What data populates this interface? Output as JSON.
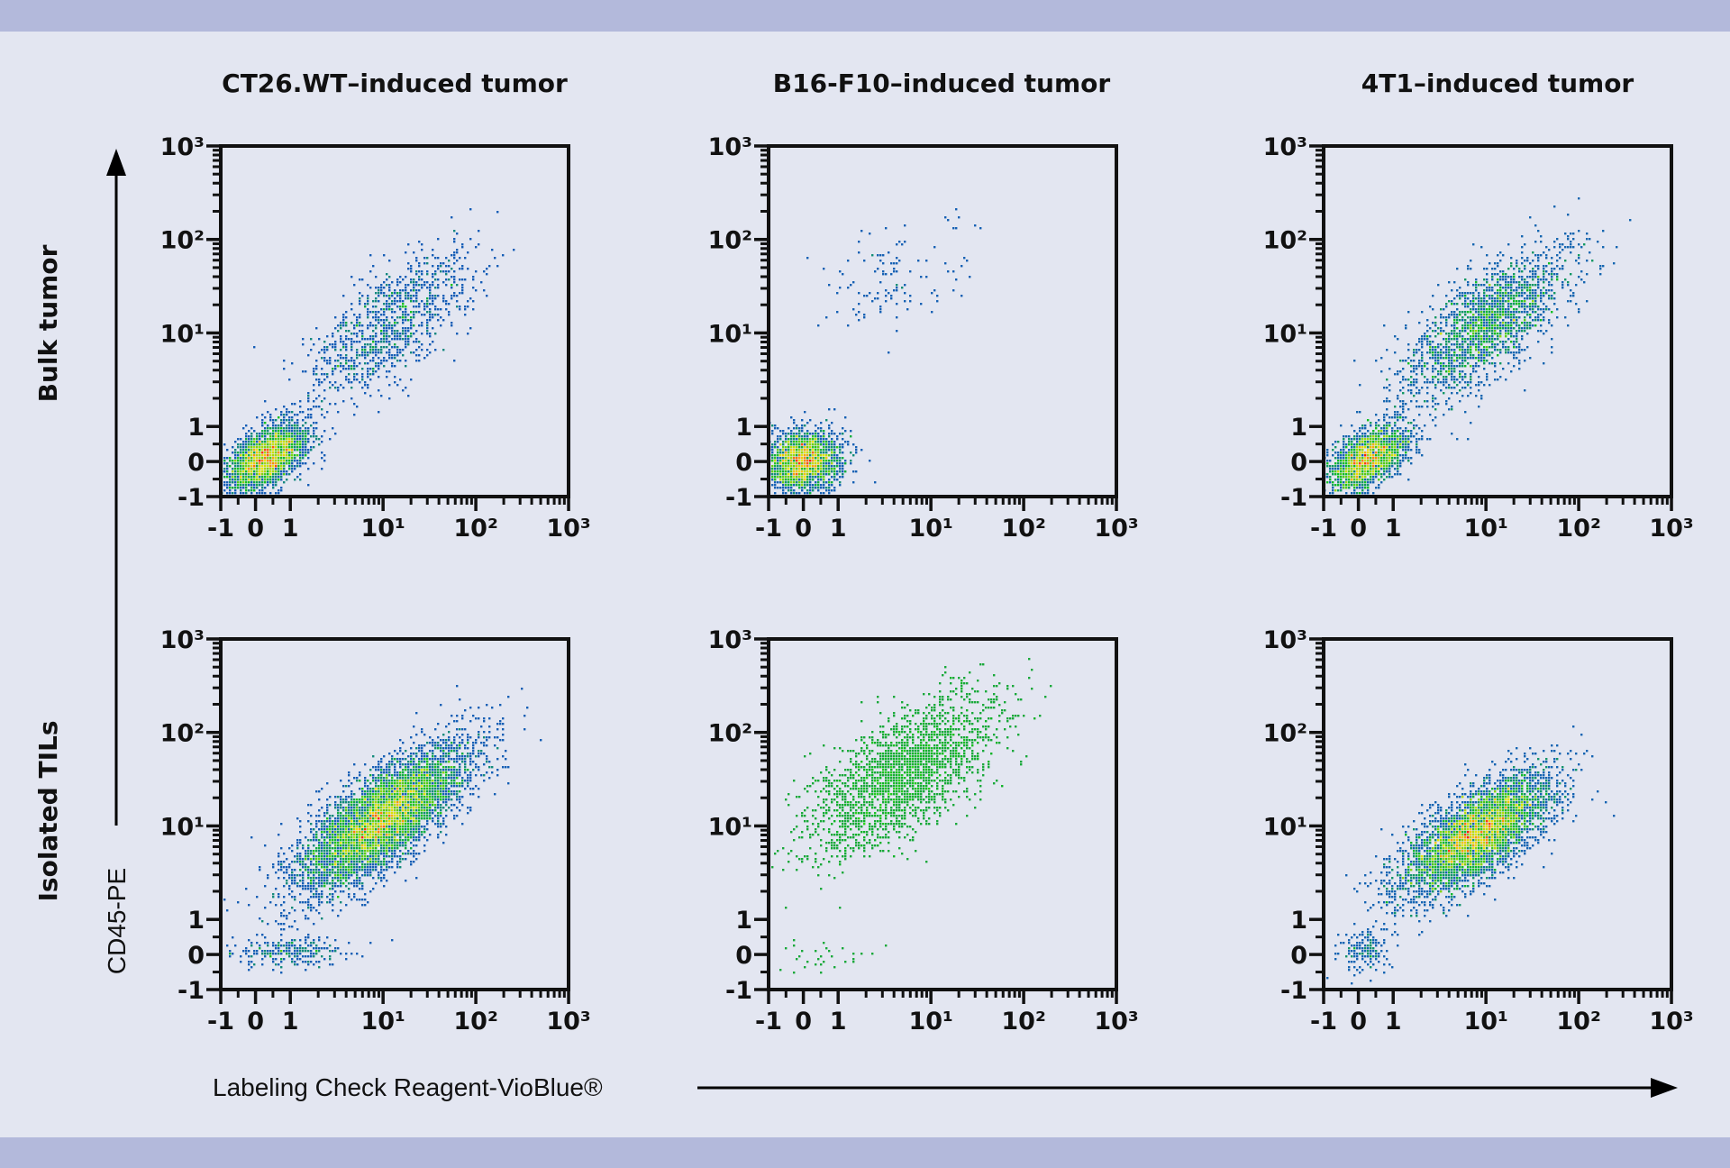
{
  "colors": {
    "background": "#e3e6f1",
    "band": "#b3b9db",
    "axis": "#111111",
    "density_low": "#1e1ee8",
    "density_mid": "#10c020",
    "density_high": "#ff2000"
  },
  "x_axis_label": "Labeling Check Reagent-VioBlue®",
  "y_axis_label": "CD45-PE",
  "row_labels": [
    "Bulk tumor",
    "Isolated TILs"
  ],
  "column_titles": [
    "CT26.WT–induced tumor",
    "B16-F10–induced tumor",
    "4T1–induced tumor"
  ],
  "chart_data": [
    {
      "type": "scatter",
      "title": "CT26.WT–induced tumor",
      "row": "Bulk tumor",
      "xlabel": "Labeling Check Reagent-VioBlue®",
      "ylabel": "CD45-PE",
      "scale": "biexponential",
      "xlim": [
        -1,
        1000
      ],
      "ylim": [
        -1,
        1000
      ],
      "tick_values": [
        -1,
        0,
        1,
        10,
        100,
        1000
      ],
      "tick_labels": [
        "-1",
        "0",
        "1",
        "10¹",
        "10²",
        "10³"
      ],
      "palette": "density",
      "populations": [
        {
          "x": 0.3,
          "y": 0.1,
          "events": 2600,
          "spread_decades": [
            0.22,
            0.18
          ],
          "correlation": 0.5
        },
        {
          "x": 12,
          "y": 12,
          "events": 1100,
          "spread_decades": [
            0.45,
            0.4
          ],
          "correlation": 0.7
        }
      ]
    },
    {
      "type": "scatter",
      "title": "B16-F10–induced tumor",
      "row": "Bulk tumor",
      "xlabel": "Labeling Check Reagent-VioBlue®",
      "ylabel": "CD45-PE",
      "scale": "biexponential",
      "xlim": [
        -1,
        1000
      ],
      "ylim": [
        -1,
        1000
      ],
      "tick_values": [
        -1,
        0,
        1,
        10,
        100,
        1000
      ],
      "tick_labels": [
        "-1",
        "0",
        "1",
        "10¹",
        "10²",
        "10³"
      ],
      "palette": "density",
      "populations": [
        {
          "x": 0,
          "y": 0,
          "events": 2200,
          "spread_decades": [
            0.2,
            0.16
          ],
          "correlation": 0.1
        },
        {
          "x": 4,
          "y": 40,
          "events": 120,
          "spread_decades": [
            0.4,
            0.3
          ],
          "correlation": 0.3
        }
      ]
    },
    {
      "type": "scatter",
      "title": "4T1–induced tumor",
      "row": "Bulk tumor",
      "xlabel": "Labeling Check Reagent-VioBlue®",
      "ylabel": "CD45-PE",
      "scale": "biexponential",
      "xlim": [
        -1,
        1000
      ],
      "ylim": [
        -1,
        1000
      ],
      "tick_values": [
        -1,
        0,
        1,
        10,
        100,
        1000
      ],
      "tick_labels": [
        "-1",
        "0",
        "1",
        "10¹",
        "10²",
        "10³"
      ],
      "palette": "density",
      "populations": [
        {
          "x": 0.3,
          "y": 0.1,
          "events": 1800,
          "spread_decades": [
            0.22,
            0.18
          ],
          "correlation": 0.5
        },
        {
          "x": 10,
          "y": 12,
          "events": 2000,
          "spread_decades": [
            0.45,
            0.4
          ],
          "correlation": 0.7
        }
      ]
    },
    {
      "type": "scatter",
      "title": "CT26.WT–induced tumor",
      "row": "Isolated TILs",
      "xlabel": "Labeling Check Reagent-VioBlue®",
      "ylabel": "CD45-PE",
      "scale": "biexponential",
      "xlim": [
        -1,
        1000
      ],
      "ylim": [
        -1,
        1000
      ],
      "tick_values": [
        -1,
        0,
        1,
        10,
        100,
        1000
      ],
      "tick_labels": [
        "-1",
        "0",
        "1",
        "10¹",
        "10²",
        "10³"
      ],
      "palette": "density",
      "populations": [
        {
          "x": 10,
          "y": 12,
          "events": 6000,
          "spread_decades": [
            0.45,
            0.38
          ],
          "correlation": 0.75
        },
        {
          "x": 1,
          "y": 0.05,
          "events": 250,
          "spread_decades": [
            0.3,
            0.08
          ],
          "correlation": 0.0
        }
      ]
    },
    {
      "type": "scatter",
      "title": "B16-F10–induced tumor",
      "row": "Isolated TILs",
      "xlabel": "Labeling Check Reagent-VioBlue®",
      "ylabel": "CD45-PE",
      "scale": "biexponential",
      "xlim": [
        -1,
        1000
      ],
      "ylim": [
        -1,
        1000
      ],
      "tick_values": [
        -1,
        0,
        1,
        10,
        100,
        1000
      ],
      "tick_labels": [
        "-1",
        "0",
        "1",
        "10¹",
        "10²",
        "10³"
      ],
      "palette": "sparse-green",
      "populations": [
        {
          "x": 5,
          "y": 35,
          "events": 2200,
          "spread_decades": [
            0.5,
            0.42
          ],
          "correlation": 0.65
        },
        {
          "x": 0.6,
          "y": -0.1,
          "events": 30,
          "spread_decades": [
            0.25,
            0.08
          ],
          "correlation": 0.0
        }
      ]
    },
    {
      "type": "scatter",
      "title": "4T1–induced tumor",
      "row": "Isolated TILs",
      "xlabel": "Labeling Check Reagent-VioBlue®",
      "ylabel": "CD45-PE",
      "scale": "biexponential",
      "xlim": [
        -1,
        1000
      ],
      "ylim": [
        -1,
        1000
      ],
      "tick_values": [
        -1,
        0,
        1,
        10,
        100,
        1000
      ],
      "tick_labels": [
        "-1",
        "0",
        "1",
        "10¹",
        "10²",
        "10³"
      ],
      "palette": "density",
      "populations": [
        {
          "x": 8,
          "y": 8,
          "events": 4500,
          "spread_decades": [
            0.4,
            0.32
          ],
          "correlation": 0.7
        },
        {
          "x": 0.2,
          "y": 0.1,
          "events": 150,
          "spread_decades": [
            0.15,
            0.12
          ],
          "correlation": 0.2
        }
      ]
    }
  ]
}
